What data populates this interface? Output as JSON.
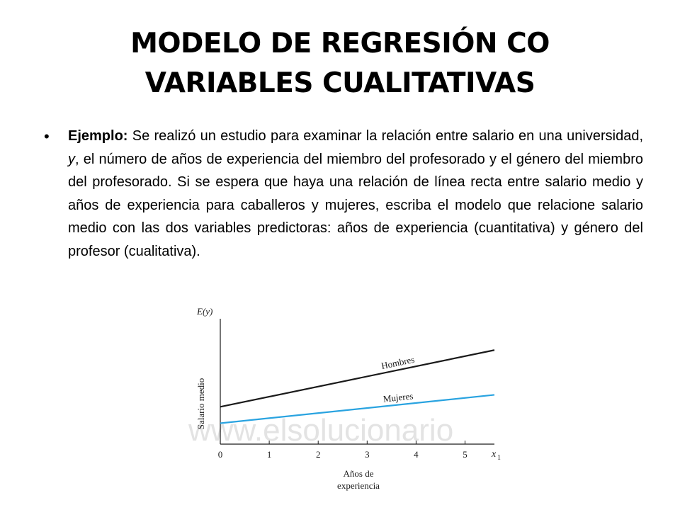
{
  "title": {
    "line1": "MODELO DE REGRESIÓN CO",
    "line2": "VARIABLES CUALITATIVAS"
  },
  "bullet": {
    "label": "Ejemplo:",
    "text_1": " Se realizó un estudio para examinar la relación entre salario en una universidad, ",
    "var_y": "y",
    "text_2": ", el número de años de experiencia del miembro del profesorado y el género del miembro del profesorado. Si se espera que haya una relación de línea recta entre salario medio y años de experiencia para caballeros y mujeres, escriba el modelo que relacione salario medio con las dos variables predictoras: años de experiencia (cuantitativa) y género del profesor (cualitativa)."
  },
  "figure": {
    "watermark": "www.elsolucionario",
    "colors": {
      "hombres": "#1a1a1a",
      "mujeres": "#29a3e0",
      "watermark": "#e3e3e3"
    }
  },
  "chart_data": {
    "type": "line",
    "ylabel_top": "E(y)",
    "ylabel": "Salario medio",
    "xlabel_line1": "Años de",
    "xlabel_line2": "experiencia",
    "x_axis_symbol": "x",
    "x_axis_subscript": "1",
    "x_ticks": [
      "0",
      "1",
      "2",
      "3",
      "4",
      "5"
    ],
    "xlim": [
      0,
      5.6
    ],
    "series": [
      {
        "name": "Hombres",
        "x": [
          0,
          5.6
        ],
        "y": [
          1.25,
          3.15
        ]
      },
      {
        "name": "Mujeres",
        "x": [
          0,
          5.6
        ],
        "y": [
          0.7,
          1.65
        ]
      }
    ],
    "ylim": [
      0,
      4.2
    ]
  }
}
